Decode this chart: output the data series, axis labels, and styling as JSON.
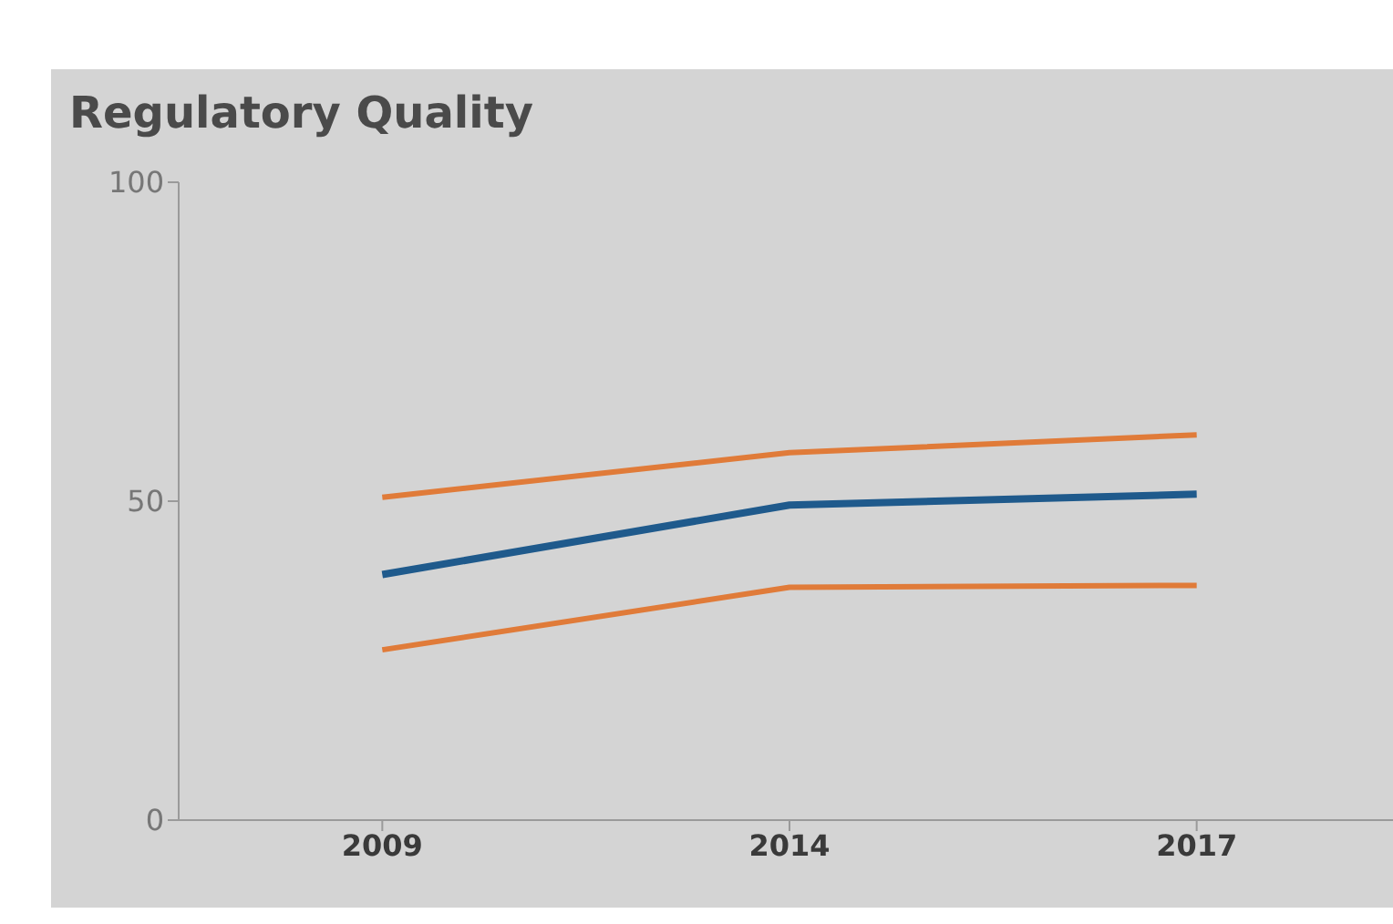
{
  "chart_data": {
    "type": "line",
    "title": "Regulatory Quality",
    "categories": [
      "2009",
      "2014",
      "2017"
    ],
    "series": [
      {
        "color": "#e07b39",
        "values": [
          50.6,
          57.6,
          60.4
        ]
      },
      {
        "color": "#1f5a8c",
        "values": [
          38.5,
          49.4,
          51.1
        ]
      },
      {
        "color": "#e07b39",
        "values": [
          26.7,
          36.5,
          36.8
        ]
      }
    ],
    "ylim": [
      0,
      100
    ],
    "yticks": [
      0,
      50,
      100
    ],
    "grid": false,
    "legend": false,
    "marker": "none",
    "line_style": "solid"
  }
}
